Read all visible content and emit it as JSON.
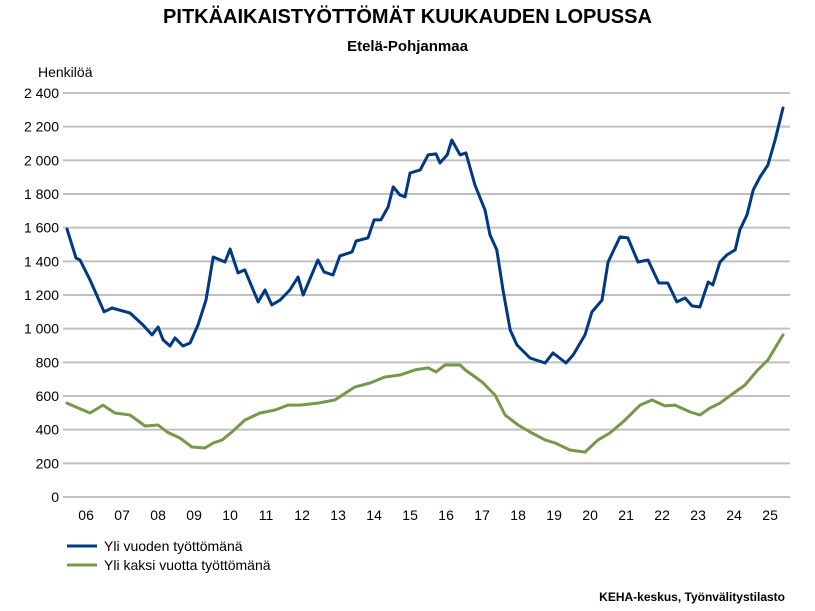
{
  "chart_data": {
    "type": "line",
    "title": "PITKÄAIKAISTYÖTTÖMÄT KUUKAUDEN LOPUSSA",
    "subtitle": "Etelä-Pohjanmaa",
    "ylabel": "Henkilöä",
    "xlabel": "",
    "ylim": [
      0,
      2400
    ],
    "xlim": [
      2006.0,
      2026.05
    ],
    "yticks": [
      0,
      200,
      400,
      600,
      800,
      1000,
      1200,
      1400,
      1600,
      1800,
      2000,
      2200,
      2400
    ],
    "ytick_labels": [
      "0",
      "200",
      "400",
      "600",
      "800",
      "1 000",
      "1 200",
      "1 400",
      "1 600",
      "1 800",
      "2 000",
      "2 200",
      "2 400"
    ],
    "xtick_labels": [
      "06",
      "07",
      "08",
      "09",
      "10",
      "11",
      "12",
      "13",
      "14",
      "15",
      "16",
      "17",
      "18",
      "19",
      "20",
      "21",
      "22",
      "23",
      "24",
      "25"
    ],
    "grid": true,
    "legend_position": "bottom-left",
    "source": "KEHA-keskus, Työnvälitystilasto",
    "series": [
      {
        "name": "Yli vuoden työttömänä",
        "color": "#003882",
        "x": [
          2006.0,
          2006.25,
          2006.36,
          2006.64,
          2007.03,
          2007.25,
          2007.75,
          2008.11,
          2008.36,
          2008.53,
          2008.67,
          2008.86,
          2009.0,
          2009.22,
          2009.42,
          2009.64,
          2009.86,
          2010.06,
          2010.39,
          2010.53,
          2010.75,
          2010.94,
          2011.31,
          2011.5,
          2011.69,
          2011.92,
          2012.19,
          2012.42,
          2012.56,
          2012.97,
          2013.14,
          2013.39,
          2013.58,
          2013.92,
          2014.03,
          2014.36,
          2014.53,
          2014.72,
          2014.92,
          2015.06,
          2015.25,
          2015.39,
          2015.53,
          2015.81,
          2016.03,
          2016.25,
          2016.36,
          2016.56,
          2016.69,
          2016.92,
          2017.08,
          2017.33,
          2017.61,
          2017.75,
          2017.94,
          2018.11,
          2018.31,
          2018.5,
          2018.86,
          2019.28,
          2019.5,
          2019.86,
          2020.06,
          2020.39,
          2020.58,
          2020.86,
          2021.03,
          2021.36,
          2021.58,
          2021.86,
          2022.14,
          2022.44,
          2022.69,
          2022.94,
          2023.17,
          2023.36,
          2023.58,
          2023.81,
          2023.94,
          2024.14,
          2024.33,
          2024.56,
          2024.69,
          2024.89,
          2025.06,
          2025.25,
          2025.47,
          2025.67,
          2025.89
        ],
        "values": [
          1592,
          1420,
          1408,
          1290,
          1100,
          1123,
          1093,
          1022,
          963,
          1010,
          933,
          897,
          945,
          897,
          915,
          1022,
          1170,
          1426,
          1396,
          1473,
          1331,
          1349,
          1159,
          1230,
          1141,
          1170,
          1230,
          1307,
          1200,
          1408,
          1337,
          1319,
          1432,
          1456,
          1521,
          1539,
          1646,
          1646,
          1723,
          1842,
          1794,
          1783,
          1925,
          1943,
          2032,
          2038,
          1985,
          2032,
          2121,
          2032,
          2044,
          1854,
          1705,
          1557,
          1468,
          1230,
          992,
          903,
          826,
          796,
          856,
          796,
          844,
          963,
          1099,
          1170,
          1396,
          1545,
          1539,
          1396,
          1408,
          1271,
          1271,
          1159,
          1182,
          1135,
          1129,
          1277,
          1260,
          1396,
          1438,
          1468,
          1586,
          1676,
          1824,
          1901,
          1972,
          2121,
          2311
        ]
      },
      {
        "name": "Yli kaksi vuotta työttömänä",
        "color": "#76984a",
        "x": [
          2006.0,
          2006.31,
          2006.64,
          2007.0,
          2007.33,
          2007.75,
          2008.17,
          2008.53,
          2008.78,
          2009.14,
          2009.47,
          2009.83,
          2010.06,
          2010.31,
          2010.58,
          2010.94,
          2011.36,
          2011.78,
          2012.14,
          2012.47,
          2012.97,
          2013.44,
          2014.0,
          2014.42,
          2014.83,
          2015.25,
          2015.67,
          2016.03,
          2016.25,
          2016.5,
          2016.92,
          2017.06,
          2017.53,
          2017.89,
          2018.17,
          2018.53,
          2018.86,
          2019.28,
          2019.56,
          2019.97,
          2020.39,
          2020.75,
          2021.08,
          2021.5,
          2021.92,
          2022.25,
          2022.61,
          2022.89,
          2023.31,
          2023.58,
          2023.86,
          2024.14,
          2024.56,
          2024.83,
          2025.19,
          2025.47,
          2025.89
        ],
        "values": [
          558,
          529,
          499,
          546,
          499,
          487,
          422,
          428,
          386,
          350,
          297,
          291,
          321,
          339,
          386,
          457,
          499,
          517,
          546,
          546,
          558,
          576,
          654,
          677,
          713,
          725,
          755,
          767,
          743,
          784,
          784,
          755,
          683,
          606,
          487,
          428,
          386,
          339,
          321,
          279,
          267,
          339,
          380,
          457,
          546,
          576,
          541,
          546,
          505,
          487,
          529,
          558,
          624,
          665,
          755,
          814,
          963
        ]
      }
    ]
  }
}
